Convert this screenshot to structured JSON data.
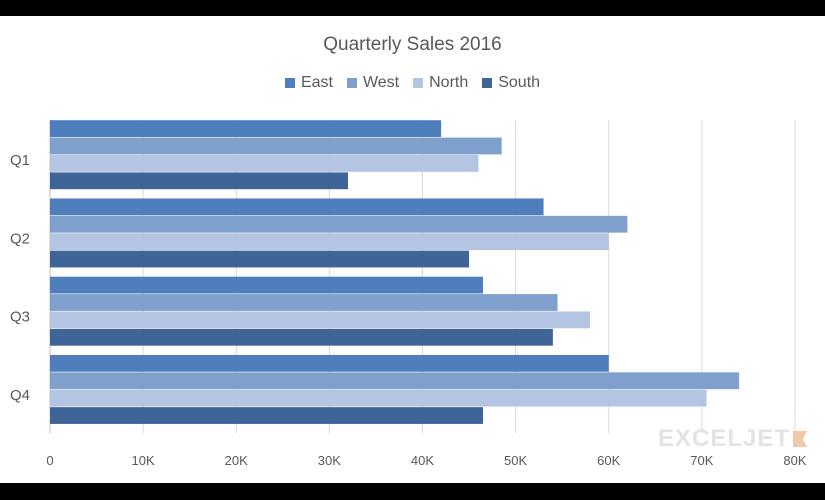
{
  "chart_data": {
    "type": "bar",
    "orientation": "horizontal",
    "title": "Quarterly Sales 2016",
    "categories": [
      "Q1",
      "Q2",
      "Q3",
      "Q4"
    ],
    "series": [
      {
        "name": "East",
        "color": "#4f7ebd",
        "values": [
          42000,
          53000,
          46500,
          60000
        ]
      },
      {
        "name": "West",
        "color": "#7f9fcd",
        "values": [
          48500,
          62000,
          54500,
          74000
        ]
      },
      {
        "name": "North",
        "color": "#b4c5e3",
        "values": [
          46000,
          60000,
          58000,
          70500
        ]
      },
      {
        "name": "South",
        "color": "#3f6497",
        "values": [
          32000,
          45000,
          54000,
          46500
        ]
      }
    ],
    "xlim": [
      0,
      80000
    ],
    "x_ticks": [
      "0",
      "10K",
      "20K",
      "30K",
      "40K",
      "50K",
      "60K",
      "70K",
      "80K"
    ],
    "grid": true,
    "legend": "top"
  },
  "watermark": "EXCELJET"
}
